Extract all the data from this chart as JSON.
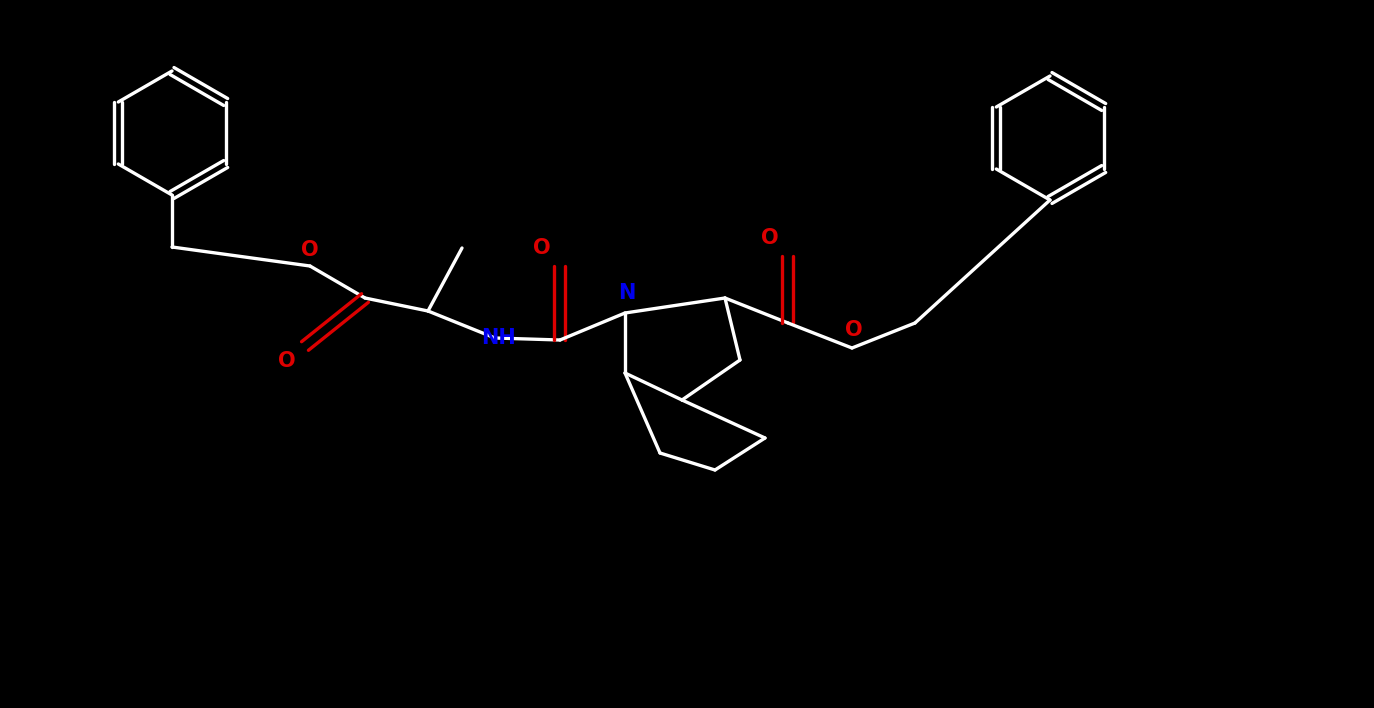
{
  "bg": "#000000",
  "bc": "#ffffff",
  "Nc": "#0000ee",
  "Oc": "#dd0000",
  "lw": 2.4,
  "fs": 15,
  "figsize": [
    13.74,
    7.08
  ],
  "dpi": 100,
  "xlim": [
    0,
    13.74
  ],
  "ylim": [
    0,
    7.08
  ]
}
